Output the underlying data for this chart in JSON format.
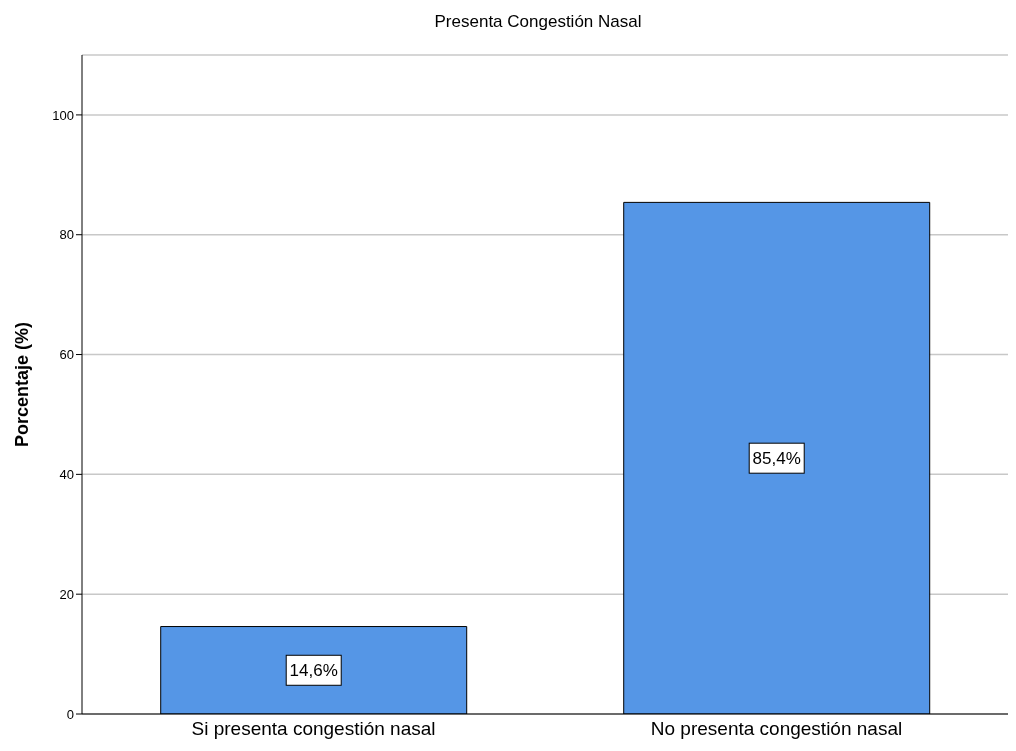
{
  "chart_data": {
    "type": "bar",
    "title": "Presenta Congestión Nasal",
    "ylabel": "Porcentaje (%)",
    "categories": [
      "Si presenta congestión nasal",
      "No presenta congestión nasal"
    ],
    "values": [
      14.6,
      85.4
    ],
    "color": "#5596e6",
    "value_labels": [
      "14,6%",
      "85,4%"
    ],
    "ylim": [
      0,
      110
    ],
    "yticks": [
      0,
      20,
      40,
      60,
      80,
      100
    ],
    "grid": "y"
  }
}
